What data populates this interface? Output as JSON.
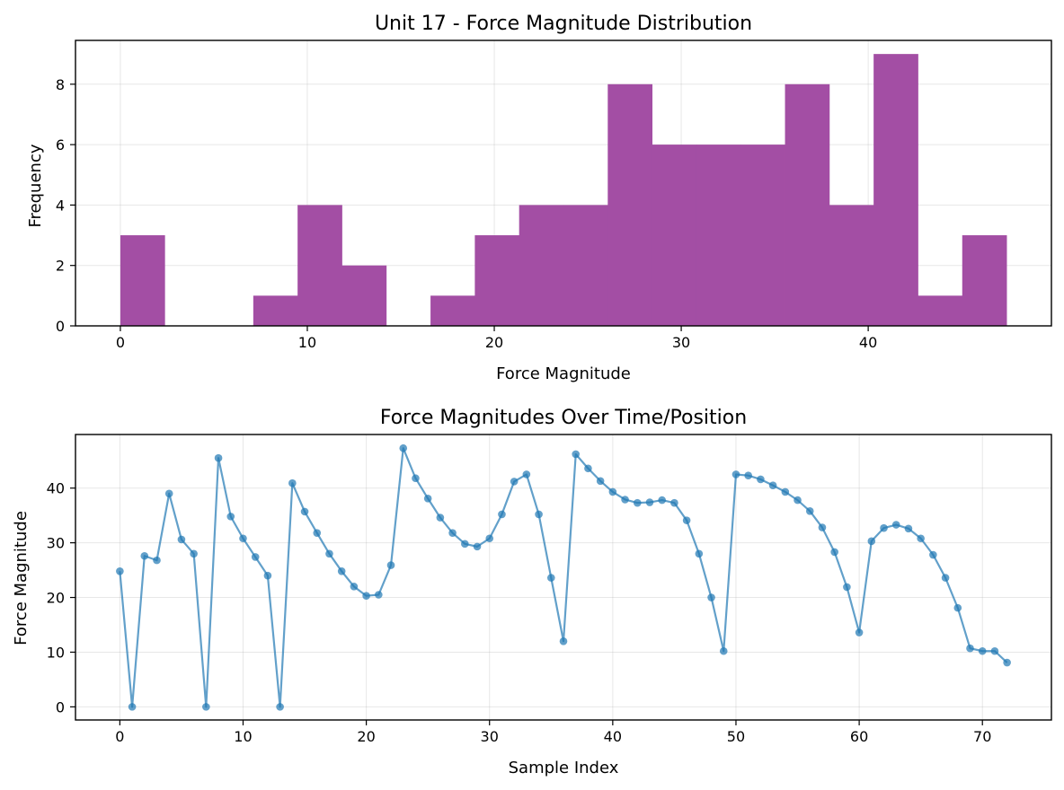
{
  "chart_data": [
    {
      "type": "bar",
      "title": "Unit 17 - Force Magnitude Distribution",
      "xlabel": "Force Magnitude",
      "ylabel": "Frequency",
      "xlim": [
        -2.4,
        49.8
      ],
      "ylim": [
        0,
        9.45
      ],
      "xticks": [
        0,
        10,
        20,
        30,
        40
      ],
      "yticks": [
        0,
        2,
        4,
        6,
        8
      ],
      "grid": true,
      "color": "#a34ea4",
      "bins": [
        {
          "start": 0.0,
          "end": 2.37,
          "count": 3
        },
        {
          "start": 2.37,
          "end": 4.74,
          "count": 0
        },
        {
          "start": 4.74,
          "end": 7.11,
          "count": 0
        },
        {
          "start": 7.11,
          "end": 9.48,
          "count": 1
        },
        {
          "start": 9.48,
          "end": 11.85,
          "count": 4
        },
        {
          "start": 11.85,
          "end": 14.22,
          "count": 2
        },
        {
          "start": 14.22,
          "end": 16.59,
          "count": 0
        },
        {
          "start": 16.59,
          "end": 18.96,
          "count": 1
        },
        {
          "start": 18.96,
          "end": 21.33,
          "count": 3
        },
        {
          "start": 21.33,
          "end": 23.7,
          "count": 4
        },
        {
          "start": 23.7,
          "end": 26.07,
          "count": 4
        },
        {
          "start": 26.07,
          "end": 28.44,
          "count": 8
        },
        {
          "start": 28.44,
          "end": 30.81,
          "count": 6
        },
        {
          "start": 30.81,
          "end": 33.18,
          "count": 6
        },
        {
          "start": 33.18,
          "end": 35.55,
          "count": 6
        },
        {
          "start": 35.55,
          "end": 37.92,
          "count": 8
        },
        {
          "start": 37.92,
          "end": 40.29,
          "count": 4
        },
        {
          "start": 40.29,
          "end": 42.66,
          "count": 9
        },
        {
          "start": 42.66,
          "end": 45.03,
          "count": 1
        },
        {
          "start": 45.03,
          "end": 47.4,
          "count": 3
        }
      ]
    },
    {
      "type": "line",
      "title": "Force Magnitudes Over Time/Position",
      "xlabel": "Sample Index",
      "ylabel": "Force Magnitude",
      "xlim": [
        -3.6,
        75.6
      ],
      "ylim": [
        -2.4,
        49.8
      ],
      "xticks": [
        0,
        10,
        20,
        30,
        40,
        50,
        60,
        70
      ],
      "yticks": [
        0,
        10,
        20,
        30,
        40
      ],
      "grid": true,
      "color": "#1f77b4",
      "series": [
        {
          "x": [
            0,
            1,
            2,
            3,
            4,
            5,
            6,
            7,
            8,
            9,
            10,
            11,
            12,
            13,
            14,
            15,
            16,
            17,
            18,
            19,
            20,
            21,
            22,
            23,
            24,
            25,
            26,
            27,
            28,
            29,
            30,
            31,
            32,
            33,
            34,
            35,
            36,
            37,
            38,
            39,
            40,
            41,
            42,
            43,
            44,
            45,
            46,
            47,
            48,
            49,
            50,
            51,
            52,
            53,
            54,
            55,
            56,
            57,
            58,
            59,
            60,
            61,
            62,
            63,
            64,
            65,
            66,
            67,
            68,
            69,
            70,
            71,
            72
          ],
          "values": [
            24.8,
            0,
            27.6,
            26.8,
            39.0,
            30.6,
            28.0,
            0,
            45.5,
            34.8,
            30.8,
            27.4,
            24.0,
            0,
            40.9,
            35.7,
            31.8,
            28.0,
            24.8,
            22.0,
            20.3,
            20.5,
            25.9,
            47.3,
            41.8,
            38.1,
            34.6,
            31.8,
            29.8,
            29.3,
            30.8,
            35.2,
            41.2,
            42.5,
            35.2,
            23.6,
            12.0,
            46.2,
            43.6,
            41.3,
            39.3,
            37.9,
            37.3,
            37.4,
            37.8,
            37.3,
            34.1,
            28.0,
            20.0,
            10.2,
            42.5,
            42.3,
            41.6,
            40.5,
            39.3,
            37.8,
            35.8,
            32.8,
            28.3,
            21.9,
            13.6,
            30.3,
            32.7,
            33.3,
            32.6,
            30.8,
            27.8,
            23.6,
            18.1,
            10.7,
            10.2,
            10.2,
            8.1
          ]
        }
      ]
    }
  ]
}
